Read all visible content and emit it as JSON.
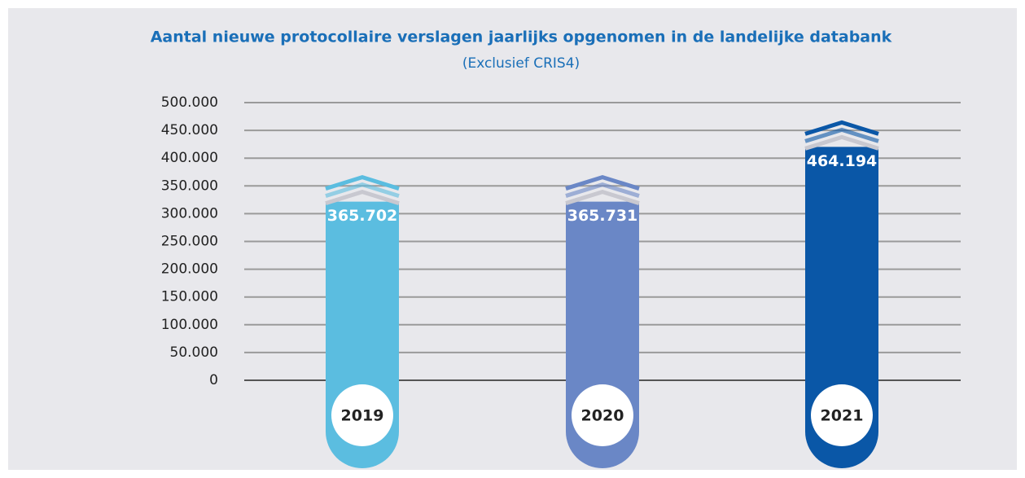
{
  "chart_data": {
    "type": "bar",
    "title": "Aantal nieuwe protocollaire verslagen jaarlijks opgenomen in de landelijke databank",
    "subtitle": "(Exclusief CRIS4)",
    "categories": [
      "2019",
      "2020",
      "2021"
    ],
    "values": [
      365702,
      365731,
      464194
    ],
    "value_labels": [
      "365.702",
      "365.731",
      "464.194"
    ],
    "colors": [
      "#5bbde0",
      "#6a87c6",
      "#0a57a7"
    ],
    "ylim": [
      0,
      500000
    ],
    "yticks": [
      0,
      {
        "value": 50000,
        "label": "50.000"
      },
      {
        "value": 100000,
        "label": "100.000"
      },
      {
        "value": 150000,
        "label": "150.000"
      },
      {
        "value": 200000,
        "label": "200.000"
      },
      {
        "value": 250000,
        "label": "250.000"
      },
      {
        "value": 300000,
        "label": "300.000"
      },
      {
        "value": 350000,
        "label": "350.000"
      },
      {
        "value": 400000,
        "label": "400.000"
      },
      {
        "value": 450000,
        "label": "450.000"
      },
      {
        "value": 500000,
        "label": "500.000"
      }
    ],
    "grid": true
  }
}
